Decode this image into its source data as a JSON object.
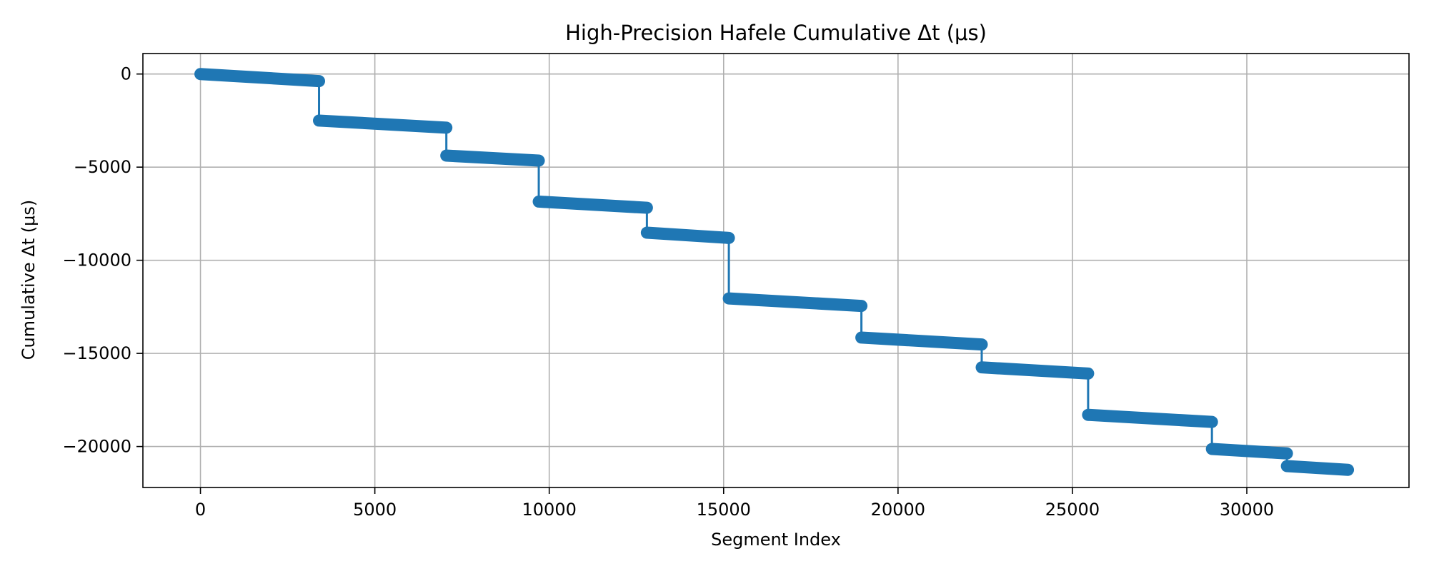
{
  "chart_data": {
    "type": "line",
    "title": "High-Precision Hafele Cumulative Δt (μs)",
    "xlabel": "Segment Index",
    "ylabel": "Cumulative Δt (μs)",
    "xlim": [
      -1650,
      34650
    ],
    "ylim": [
      -22200,
      1100
    ],
    "xticks": [
      0,
      5000,
      10000,
      15000,
      20000,
      25000,
      30000
    ],
    "xtick_labels": [
      "0",
      "5000",
      "10000",
      "15000",
      "20000",
      "25000",
      "30000"
    ],
    "yticks": [
      0,
      -5000,
      -10000,
      -15000,
      -20000
    ],
    "ytick_labels": [
      "0",
      "−5000",
      "−10000",
      "−15000",
      "−20000"
    ],
    "grid": true,
    "series_color": "#1f77b4",
    "segments": [
      {
        "x_start": 0,
        "x_end": 3400,
        "y_start": 0,
        "y_end": -380
      },
      {
        "x_start": 3400,
        "x_end": 7050,
        "y_start": -2500,
        "y_end": -2880
      },
      {
        "x_start": 7050,
        "x_end": 9700,
        "y_start": -4380,
        "y_end": -4650
      },
      {
        "x_start": 9700,
        "x_end": 12800,
        "y_start": -6850,
        "y_end": -7180
      },
      {
        "x_start": 12800,
        "x_end": 15150,
        "y_start": -8520,
        "y_end": -8800
      },
      {
        "x_start": 15150,
        "x_end": 18950,
        "y_start": -12050,
        "y_end": -12450
      },
      {
        "x_start": 18950,
        "x_end": 22400,
        "y_start": -14150,
        "y_end": -14520
      },
      {
        "x_start": 22400,
        "x_end": 25450,
        "y_start": -15750,
        "y_end": -16080
      },
      {
        "x_start": 25450,
        "x_end": 29000,
        "y_start": -18300,
        "y_end": -18680
      },
      {
        "x_start": 29000,
        "x_end": 31150,
        "y_start": -20130,
        "y_end": -20370
      },
      {
        "x_start": 31150,
        "x_end": 32900,
        "y_start": -21050,
        "y_end": -21250
      }
    ]
  }
}
